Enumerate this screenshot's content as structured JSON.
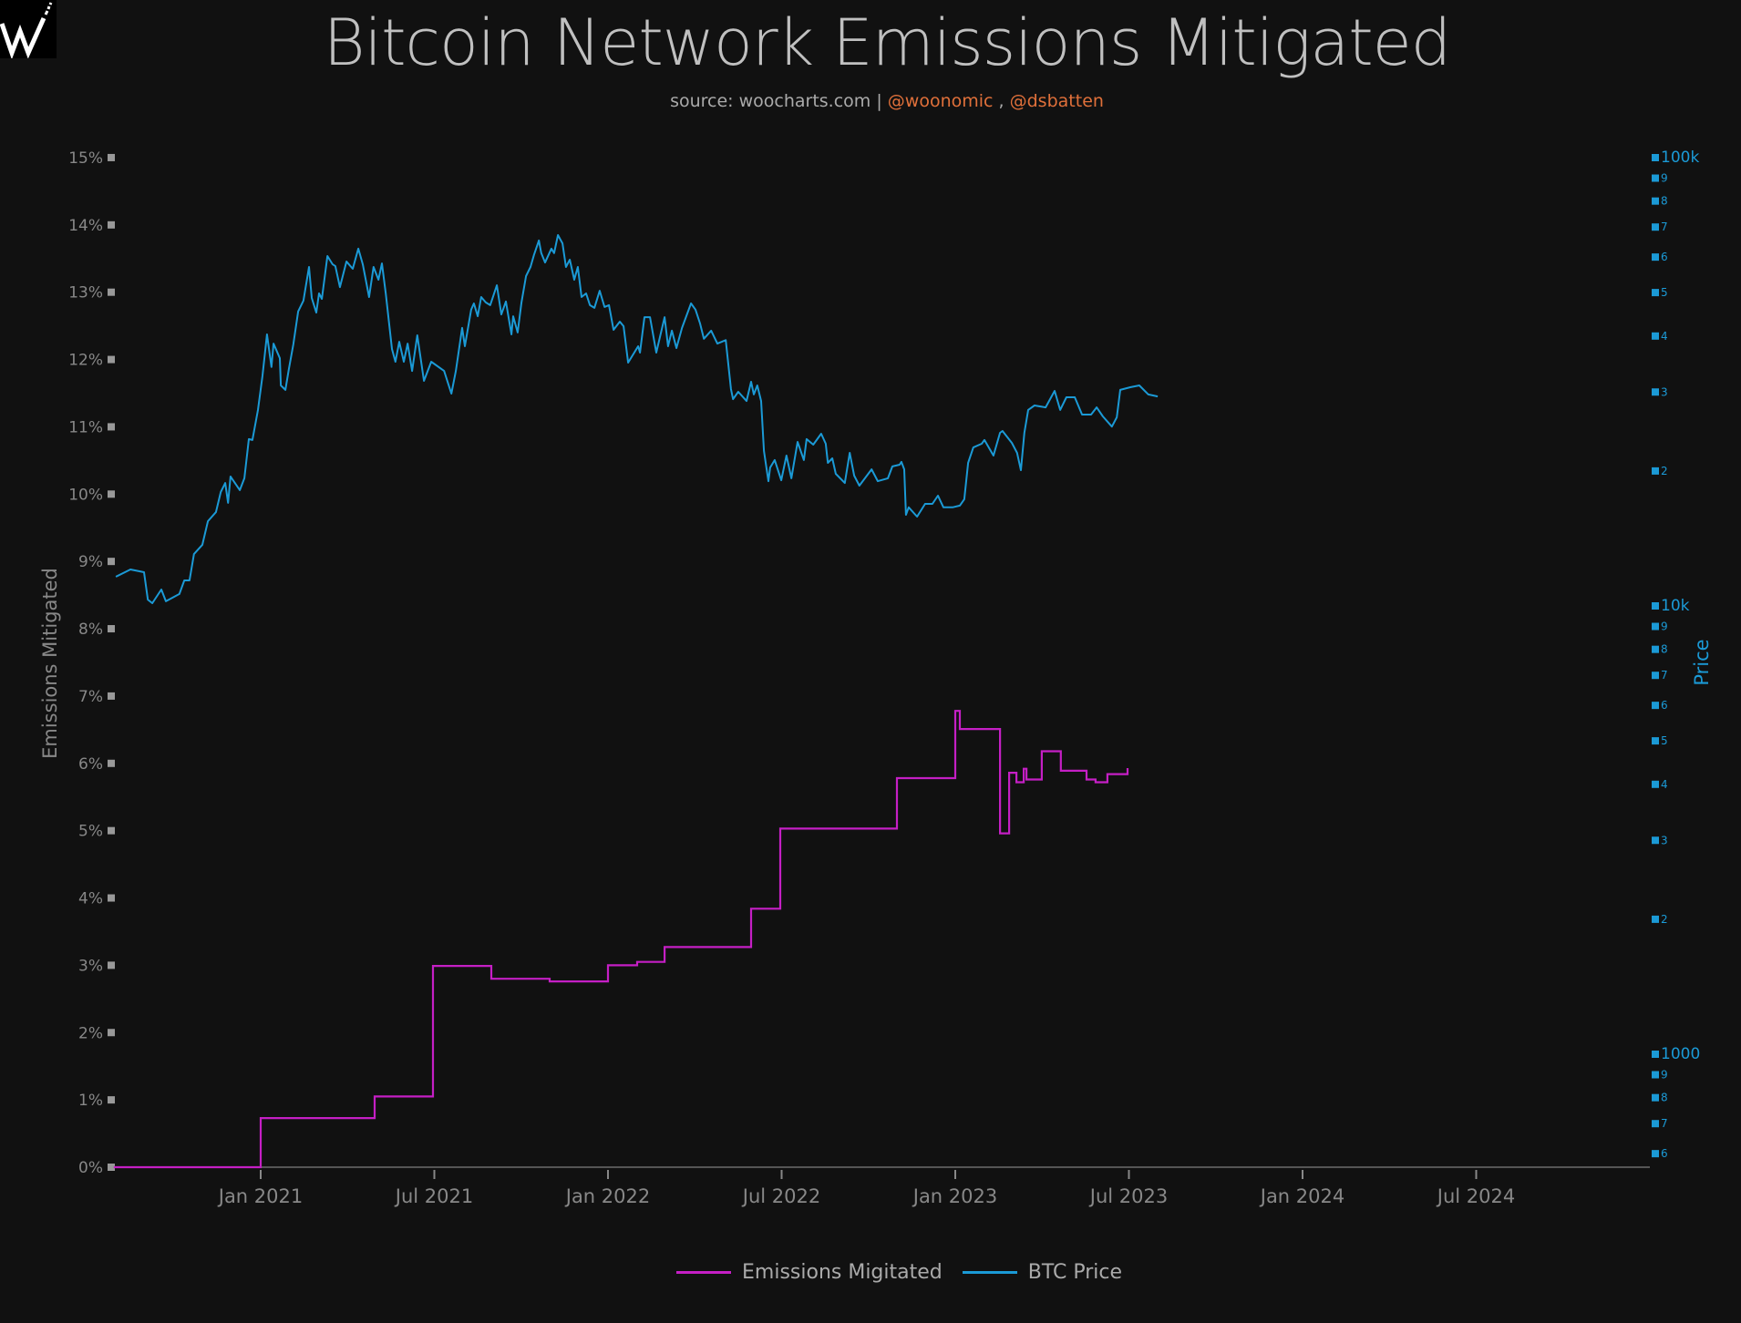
{
  "header": {
    "logo_letter": "W",
    "title": "Bitcoin Network Emissions Mitigated",
    "subtitle_source": "source: woocharts.com",
    "subtitle_sep": " | ",
    "subtitle_author1": "@woonomic",
    "subtitle_comma": " , ",
    "subtitle_author2": "@dsbatten"
  },
  "colors": {
    "background": "#111111",
    "emissions": "#c51fc5",
    "btc": "#1b9ad6",
    "axis_left": "#999999",
    "axis_right": "#1b9ad6",
    "accent": "#e0703a"
  },
  "legend": [
    {
      "label": "Emissions Migitated",
      "color": "#c51fc5"
    },
    {
      "label": "BTC Price",
      "color": "#1b9ad6"
    }
  ],
  "chart_data": {
    "type": "line",
    "title": "Bitcoin Network Emissions Mitigated",
    "subtitle": "source: woocharts.com | @woonomic , @dsbatten",
    "xlabel": "",
    "ylabel": "Emissions Mitigated",
    "y2label": "Price",
    "x_ticks": [
      "Jan 2021",
      "Jul 2021",
      "Jan 2022",
      "Jul 2022",
      "Jan 2023",
      "Jul 2023",
      "Jan 2024",
      "Jul 2024"
    ],
    "x_tick_years": [
      2021.0,
      2021.5,
      2022.0,
      2022.5,
      2023.0,
      2023.5,
      2024.0,
      2024.5
    ],
    "xlim": [
      2020.58,
      2025.0
    ],
    "y_ticks": [
      "0%",
      "1%",
      "2%",
      "3%",
      "4%",
      "5%",
      "6%",
      "7%",
      "8%",
      "9%",
      "10%",
      "11%",
      "12%",
      "13%",
      "14%",
      "15%"
    ],
    "ylim": [
      0,
      15
    ],
    "y2_scale": "log",
    "y2_ticks": [
      {
        "label": "100k",
        "value": 100000
      },
      {
        "label": "9",
        "value": 90000
      },
      {
        "label": "8",
        "value": 80000
      },
      {
        "label": "7",
        "value": 70000
      },
      {
        "label": "6",
        "value": 60000
      },
      {
        "label": "5",
        "value": 50000
      },
      {
        "label": "4",
        "value": 40000
      },
      {
        "label": "3",
        "value": 30000
      },
      {
        "label": "2",
        "value": 20000
      },
      {
        "label": "10k",
        "value": 10000
      },
      {
        "label": "9",
        "value": 9000
      },
      {
        "label": "8",
        "value": 8000
      },
      {
        "label": "7",
        "value": 7000
      },
      {
        "label": "6",
        "value": 6000
      },
      {
        "label": "5",
        "value": 5000
      },
      {
        "label": "4",
        "value": 4000
      },
      {
        "label": "3",
        "value": 3000
      },
      {
        "label": "2",
        "value": 2000
      },
      {
        "label": "1000",
        "value": 1000
      },
      {
        "label": "9",
        "value": 900
      },
      {
        "label": "8",
        "value": 800
      },
      {
        "label": "7",
        "value": 700
      },
      {
        "label": "6",
        "value": 600
      }
    ],
    "y2lim": [
      580,
      102000
    ],
    "legend_position": "bottom-center",
    "grid": false,
    "series": [
      {
        "name": "Emissions Migitated",
        "axis": "left",
        "shape": "step",
        "unit": "%",
        "points": [
          [
            2020.577,
            0
          ],
          [
            2021.0,
            0.73
          ],
          [
            2021.328,
            1.05
          ],
          [
            2021.496,
            2.99
          ],
          [
            2021.664,
            2.8
          ],
          [
            2021.832,
            2.76
          ],
          [
            2022.0,
            3.0
          ],
          [
            2022.084,
            3.05
          ],
          [
            2022.163,
            3.27
          ],
          [
            2022.412,
            3.84
          ],
          [
            2022.496,
            5.03
          ],
          [
            2022.832,
            5.78
          ],
          [
            2023.0,
            6.78
          ],
          [
            2023.013,
            6.51
          ],
          [
            2023.129,
            4.96
          ],
          [
            2023.155,
            5.86
          ],
          [
            2023.176,
            5.72
          ],
          [
            2023.197,
            5.92
          ],
          [
            2023.205,
            5.76
          ],
          [
            2023.249,
            6.18
          ],
          [
            2023.304,
            5.89
          ],
          [
            2023.378,
            5.76
          ],
          [
            2023.404,
            5.72
          ],
          [
            2023.438,
            5.84
          ],
          [
            2023.496,
            5.93
          ]
        ]
      },
      {
        "name": "BTC Price",
        "axis": "right",
        "shape": "line",
        "unit": "USD",
        "points": [
          [
            2020.583,
            11614
          ],
          [
            2020.625,
            12058
          ],
          [
            2020.664,
            11890
          ],
          [
            2020.675,
            10330
          ],
          [
            2020.688,
            10140
          ],
          [
            2020.714,
            10880
          ],
          [
            2020.727,
            10240
          ],
          [
            2020.766,
            10630
          ],
          [
            2020.78,
            11400
          ],
          [
            2020.795,
            11400
          ],
          [
            2020.808,
            13050
          ],
          [
            2020.832,
            13690
          ],
          [
            2020.848,
            15450
          ],
          [
            2020.871,
            16190
          ],
          [
            2020.885,
            17950
          ],
          [
            2020.898,
            18800
          ],
          [
            2020.906,
            16980
          ],
          [
            2020.913,
            19440
          ],
          [
            2020.94,
            18130
          ],
          [
            2020.953,
            19260
          ],
          [
            2020.966,
            23560
          ],
          [
            2020.976,
            23450
          ],
          [
            2020.992,
            27360
          ],
          [
            2021.005,
            32520
          ],
          [
            2021.018,
            40340
          ],
          [
            2021.031,
            34110
          ],
          [
            2021.037,
            38480
          ],
          [
            2021.055,
            35700
          ],
          [
            2021.058,
            31040
          ],
          [
            2021.071,
            30330
          ],
          [
            2021.081,
            33750
          ],
          [
            2021.094,
            38310
          ],
          [
            2021.108,
            45390
          ],
          [
            2021.123,
            47980
          ],
          [
            2021.139,
            57020
          ],
          [
            2021.147,
            48650
          ],
          [
            2021.16,
            45100
          ],
          [
            2021.168,
            49790
          ],
          [
            2021.176,
            48420
          ],
          [
            2021.192,
            60310
          ],
          [
            2021.207,
            57810
          ],
          [
            2021.215,
            57280
          ],
          [
            2021.228,
            51420
          ],
          [
            2021.247,
            58660
          ],
          [
            2021.265,
            56490
          ],
          [
            2021.281,
            62650
          ],
          [
            2021.294,
            57810
          ],
          [
            2021.312,
            48870
          ],
          [
            2021.325,
            57020
          ],
          [
            2021.339,
            53410
          ],
          [
            2021.349,
            58080
          ],
          [
            2021.36,
            49790
          ],
          [
            2021.378,
            37420
          ],
          [
            2021.388,
            35060
          ],
          [
            2021.399,
            38840
          ],
          [
            2021.412,
            35060
          ],
          [
            2021.423,
            38480
          ],
          [
            2021.436,
            33440
          ],
          [
            2021.451,
            40150
          ],
          [
            2021.47,
            31770
          ],
          [
            2021.491,
            35060
          ],
          [
            2021.528,
            33440
          ],
          [
            2021.549,
            29760
          ],
          [
            2021.562,
            33440
          ],
          [
            2021.58,
            41690
          ],
          [
            2021.588,
            37950
          ],
          [
            2021.606,
            45810
          ],
          [
            2021.614,
            47300
          ],
          [
            2021.625,
            44270
          ],
          [
            2021.635,
            48870
          ],
          [
            2021.648,
            47530
          ],
          [
            2021.661,
            46880
          ],
          [
            2021.68,
            51900
          ],
          [
            2021.693,
            44690
          ],
          [
            2021.706,
            47760
          ],
          [
            2021.722,
            40340
          ],
          [
            2021.727,
            44270
          ],
          [
            2021.74,
            40740
          ],
          [
            2021.751,
            47530
          ],
          [
            2021.764,
            54420
          ],
          [
            2021.777,
            57020
          ],
          [
            2021.787,
            60650
          ],
          [
            2021.801,
            65340
          ],
          [
            2021.808,
            61220
          ],
          [
            2021.819,
            58350
          ],
          [
            2021.837,
            62650
          ],
          [
            2021.845,
            61220
          ],
          [
            2021.856,
            67180
          ],
          [
            2021.869,
            64390
          ],
          [
            2021.879,
            57020
          ],
          [
            2021.89,
            59200
          ],
          [
            2021.903,
            53410
          ],
          [
            2021.913,
            57020
          ],
          [
            2021.924,
            48870
          ],
          [
            2021.937,
            49790
          ],
          [
            2021.948,
            46880
          ],
          [
            2021.961,
            46210
          ],
          [
            2021.976,
            50480
          ],
          [
            2021.99,
            46430
          ],
          [
            2022.003,
            46880
          ],
          [
            2022.016,
            41300
          ],
          [
            2022.034,
            43060
          ],
          [
            2022.045,
            42070
          ],
          [
            2022.058,
            34890
          ],
          [
            2022.087,
            37950
          ],
          [
            2022.092,
            36740
          ],
          [
            2022.105,
            44070
          ],
          [
            2022.121,
            44070
          ],
          [
            2022.139,
            36740
          ],
          [
            2022.163,
            44070
          ],
          [
            2022.173,
            37950
          ],
          [
            2022.184,
            41110
          ],
          [
            2022.197,
            37600
          ],
          [
            2022.213,
            41690
          ],
          [
            2022.239,
            47300
          ],
          [
            2022.252,
            45810
          ],
          [
            2022.265,
            42660
          ],
          [
            2022.276,
            39440
          ],
          [
            2022.297,
            41110
          ],
          [
            2022.315,
            38480
          ],
          [
            2022.339,
            39170
          ],
          [
            2022.354,
            30470
          ],
          [
            2022.36,
            28920
          ],
          [
            2022.375,
            30040
          ],
          [
            2022.399,
            28650
          ],
          [
            2022.412,
            31630
          ],
          [
            2022.42,
            29630
          ],
          [
            2022.43,
            31040
          ],
          [
            2022.441,
            28650
          ],
          [
            2022.449,
            22170
          ],
          [
            2022.462,
            18980
          ],
          [
            2022.467,
            20350
          ],
          [
            2022.48,
            21150
          ],
          [
            2022.499,
            19070
          ],
          [
            2022.514,
            21650
          ],
          [
            2022.528,
            19260
          ],
          [
            2022.546,
            23220
          ],
          [
            2022.564,
            21150
          ],
          [
            2022.572,
            23560
          ],
          [
            2022.591,
            22900
          ],
          [
            2022.614,
            24220
          ],
          [
            2022.627,
            23000
          ],
          [
            2022.633,
            20850
          ],
          [
            2022.646,
            21340
          ],
          [
            2022.656,
            19710
          ],
          [
            2022.682,
            18800
          ],
          [
            2022.696,
            21950
          ],
          [
            2022.709,
            19530
          ],
          [
            2022.724,
            18550
          ],
          [
            2022.759,
            20170
          ],
          [
            2022.777,
            18980
          ],
          [
            2022.806,
            19260
          ],
          [
            2022.819,
            20470
          ],
          [
            2022.84,
            20660
          ],
          [
            2022.845,
            20960
          ],
          [
            2022.853,
            20170
          ],
          [
            2022.858,
            15970
          ],
          [
            2022.866,
            16590
          ],
          [
            2022.89,
            15820
          ],
          [
            2022.913,
            16890
          ],
          [
            2022.934,
            16890
          ],
          [
            2022.95,
            17620
          ],
          [
            2022.966,
            16590
          ],
          [
            2022.992,
            16590
          ],
          [
            2023.013,
            16740
          ],
          [
            2023.026,
            17300
          ],
          [
            2023.037,
            20850
          ],
          [
            2023.052,
            22570
          ],
          [
            2023.076,
            23000
          ],
          [
            2023.084,
            23450
          ],
          [
            2023.11,
            21650
          ],
          [
            2023.129,
            24330
          ],
          [
            2023.136,
            24560
          ],
          [
            2023.163,
            23100
          ],
          [
            2023.178,
            21950
          ],
          [
            2023.189,
            20080
          ],
          [
            2023.199,
            24330
          ],
          [
            2023.21,
            27360
          ],
          [
            2023.228,
            28000
          ],
          [
            2023.26,
            27730
          ],
          [
            2023.286,
            30170
          ],
          [
            2023.302,
            27360
          ],
          [
            2023.32,
            29200
          ],
          [
            2023.344,
            29200
          ],
          [
            2023.365,
            26720
          ],
          [
            2023.391,
            26720
          ],
          [
            2023.407,
            27730
          ],
          [
            2023.425,
            26470
          ],
          [
            2023.451,
            25120
          ],
          [
            2023.465,
            26350
          ],
          [
            2023.475,
            30330
          ],
          [
            2023.504,
            30750
          ],
          [
            2023.53,
            31040
          ],
          [
            2023.556,
            29630
          ],
          [
            2023.583,
            29330
          ]
        ]
      }
    ]
  }
}
